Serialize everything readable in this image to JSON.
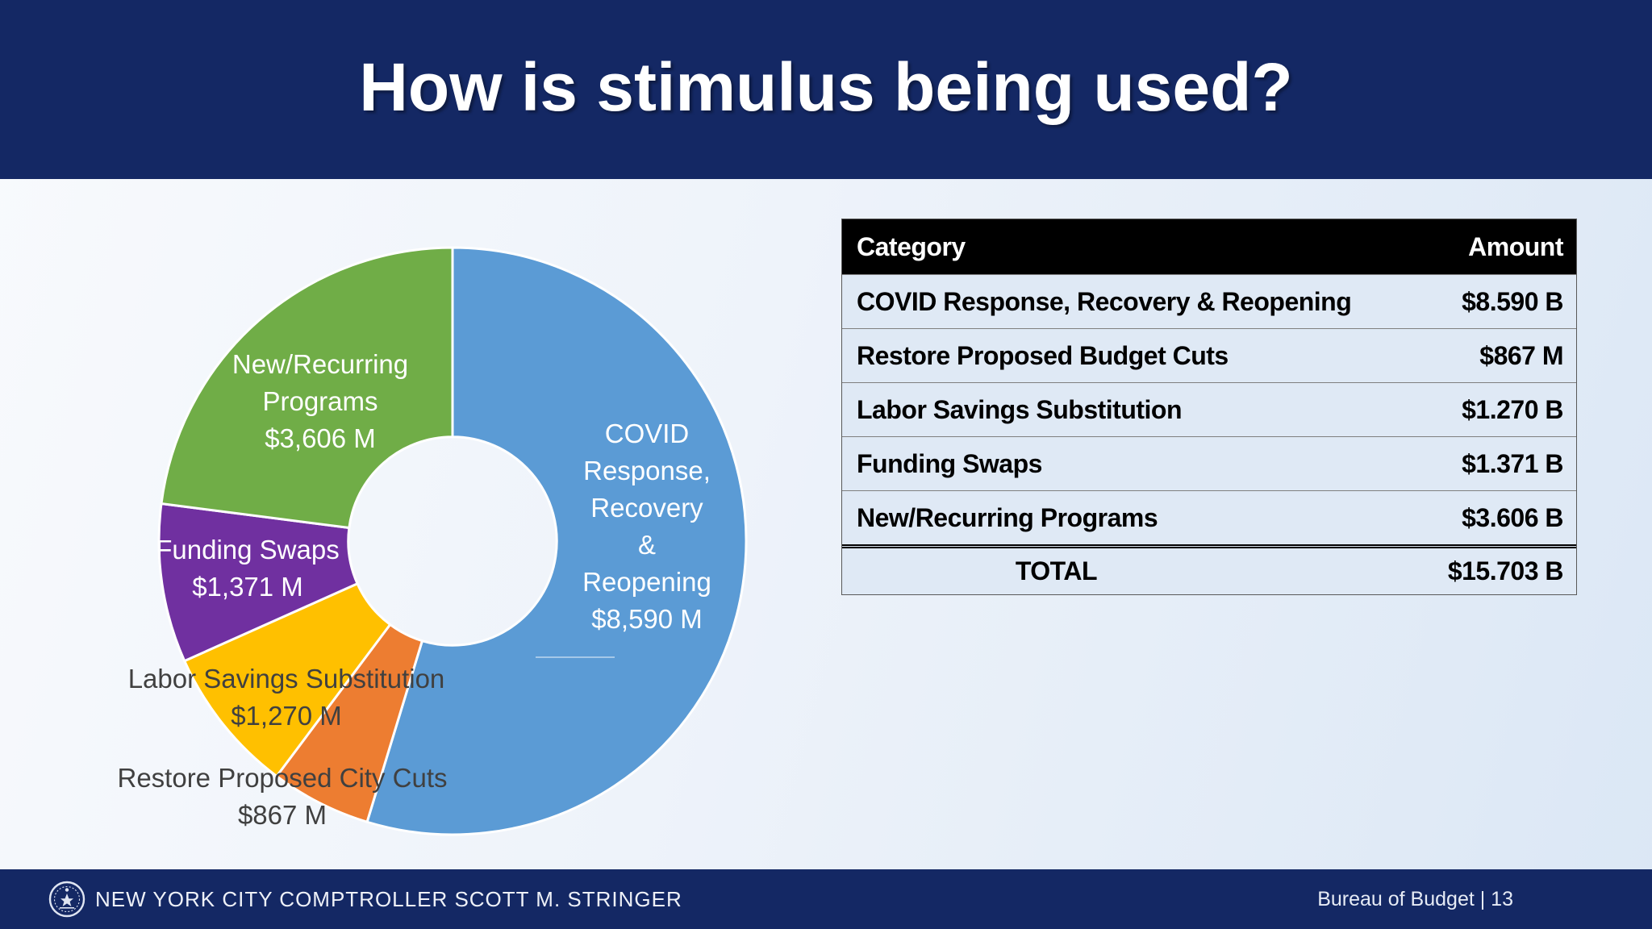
{
  "slide": {
    "title": "How is stimulus being used?",
    "footer": {
      "left": "NEW YORK CITY COMPTROLLER SCOTT M. STRINGER",
      "right": "Bureau of Budget | 13"
    },
    "colors": {
      "navy": "#142864",
      "table_row_bg": "#dfe9f5",
      "dark_label": "#404040"
    }
  },
  "chart_data": {
    "type": "pie",
    "subtype": "donut",
    "unit": "USD millions",
    "direction": "clockwise",
    "start_angle_deg": 0,
    "hole_ratio": 0.355,
    "slices": [
      {
        "label": "COVID Response, Recovery & Reopening",
        "value": 8590,
        "color": "#5B9BD5",
        "label_color": "#FFFFFF",
        "label_lines": [
          "COVID",
          "Response,",
          "Recovery",
          "&",
          "Reopening",
          "$8,590 M"
        ]
      },
      {
        "label": "Restore Proposed City Cuts",
        "value": 867,
        "color": "#ED7D31",
        "label_color": "#404040",
        "label_lines": [
          "Restore Proposed City Cuts",
          "$867 M"
        ]
      },
      {
        "label": "Labor Savings Substitution",
        "value": 1270,
        "color": "#FFC000",
        "label_color": "#404040",
        "label_lines": [
          "Labor Savings Substitution",
          "$1,270 M"
        ]
      },
      {
        "label": "Funding Swaps",
        "value": 1371,
        "color": "#7030A0",
        "label_color": "#FFFFFF",
        "label_lines": [
          "Funding Swaps",
          "$1,371 M"
        ]
      },
      {
        "label": "New/Recurring Programs",
        "value": 3606,
        "color": "#70AD47",
        "label_color": "#FFFFFF",
        "label_lines": [
          "New/Recurring",
          "Programs",
          "$3,606 M"
        ]
      }
    ]
  },
  "table": {
    "headers": {
      "category": "Category",
      "amount": "Amount"
    },
    "rows": [
      {
        "category": "COVID Response, Recovery & Reopening",
        "amount": "$8.590 B"
      },
      {
        "category": "Restore Proposed Budget Cuts",
        "amount": "$867 M"
      },
      {
        "category": "Labor Savings Substitution",
        "amount": "$1.270 B"
      },
      {
        "category": "Funding Swaps",
        "amount": "$1.371 B"
      },
      {
        "category": "New/Recurring Programs",
        "amount": "$3.606 B"
      }
    ],
    "total": {
      "label": "TOTAL",
      "amount": "$15.703 B"
    }
  }
}
